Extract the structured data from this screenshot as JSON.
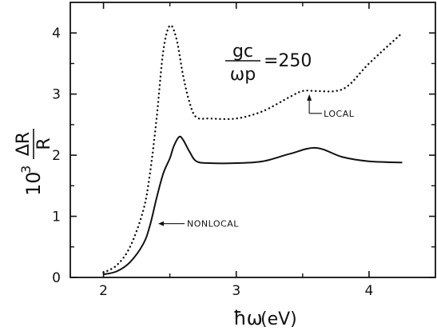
{
  "chart_data": {
    "type": "line",
    "xlabel_main": "ħω",
    "xlabel_unit": "(eV)",
    "ylabel_prefix": "10",
    "ylabel_exponent": "3",
    "ylabel_numerator": "ΔR",
    "ylabel_denominator": "R",
    "xlim": [
      1.75,
      4.5
    ],
    "ylim": [
      0,
      4.5
    ],
    "x_ticks": [
      "2",
      "3",
      "4"
    ],
    "y_ticks": [
      "0",
      "1",
      "2",
      "3",
      "4"
    ],
    "parameter": {
      "numerator": "gc",
      "denominator": "ωp",
      "equals": "=250"
    },
    "series": [
      {
        "name": "NONLOCAL",
        "style": "solid",
        "x": [
          2.0,
          2.1,
          2.2,
          2.3,
          2.35,
          2.4,
          2.45,
          2.5,
          2.53,
          2.57,
          2.6,
          2.65,
          2.7,
          2.8,
          3.0,
          3.2,
          3.4,
          3.6,
          3.8,
          4.0,
          4.25
        ],
        "y": [
          0.05,
          0.1,
          0.25,
          0.55,
          0.85,
          1.3,
          1.7,
          1.95,
          2.15,
          2.3,
          2.25,
          2.05,
          1.9,
          1.87,
          1.87,
          1.9,
          2.02,
          2.12,
          1.97,
          1.9,
          1.88
        ]
      },
      {
        "name": "LOCAL",
        "style": "dotted",
        "x": [
          2.0,
          2.1,
          2.2,
          2.3,
          2.35,
          2.4,
          2.45,
          2.5,
          2.55,
          2.6,
          2.65,
          2.7,
          2.8,
          3.0,
          3.2,
          3.4,
          3.5,
          3.6,
          3.75,
          3.85,
          4.0,
          4.25
        ],
        "y": [
          0.08,
          0.2,
          0.5,
          1.1,
          1.7,
          2.6,
          3.7,
          4.12,
          3.9,
          3.3,
          2.85,
          2.62,
          2.6,
          2.6,
          2.72,
          2.95,
          3.05,
          3.05,
          3.05,
          3.15,
          3.5,
          4.0
        ]
      }
    ],
    "annotations": [
      {
        "label": "NONLOCAL",
        "series": "NONLOCAL",
        "x": 2.4,
        "y": 0.88
      },
      {
        "label": "LOCAL",
        "series": "LOCAL",
        "x": 3.55,
        "y": 3.05
      }
    ]
  }
}
